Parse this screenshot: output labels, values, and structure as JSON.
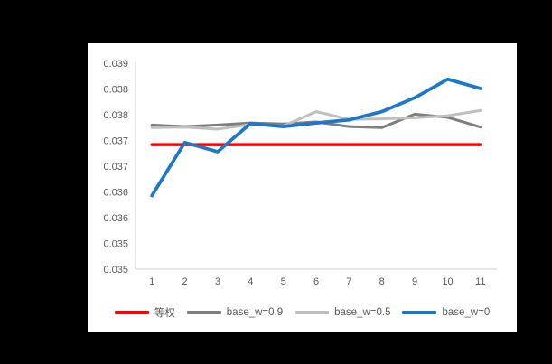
{
  "window": {
    "background_color": "#000000",
    "panel_color": "#ffffff"
  },
  "chart_data": {
    "type": "line",
    "title": "",
    "xlabel": "",
    "ylabel": "",
    "x": [
      1,
      2,
      3,
      4,
      5,
      6,
      7,
      8,
      9,
      10,
      11
    ],
    "xtick_labels": [
      "1",
      "2",
      "3",
      "4",
      "5",
      "6",
      "7",
      "8",
      "9",
      "10",
      "11"
    ],
    "ylim": [
      0.035,
      0.039
    ],
    "ytick_step": 0.0005,
    "ytick_labels": [
      "0.039",
      "0.038",
      "0.038",
      "0.037",
      "0.037",
      "0.036",
      "0.036",
      "0.035",
      "0.035"
    ],
    "grid": false,
    "legend_position": "bottom",
    "axis_color": "#d9d9d9",
    "tick_text_color": "#595959",
    "series": [
      {
        "name": "等权",
        "color": "#ff0000",
        "stroke_width": 3.5,
        "values": [
          0.03742,
          0.03742,
          0.03742,
          0.03742,
          0.03742,
          0.03742,
          0.03742,
          0.03742,
          0.03742,
          0.03742,
          0.03742
        ]
      },
      {
        "name": "base_w=0.9",
        "color": "#7f7f7f",
        "stroke_width": 3,
        "values": [
          0.0378,
          0.03777,
          0.0378,
          0.03784,
          0.03782,
          0.03786,
          0.03777,
          0.03775,
          0.03801,
          0.03795,
          0.03776
        ]
      },
      {
        "name": "base_w=0.5",
        "color": "#bfbfbf",
        "stroke_width": 3,
        "values": [
          0.03775,
          0.03776,
          0.03772,
          0.03781,
          0.03778,
          0.03806,
          0.03791,
          0.03792,
          0.03794,
          0.03798,
          0.03808
        ]
      },
      {
        "name": "base_w=0",
        "color": "#1e78c8",
        "stroke_width": 3.75,
        "values": [
          0.03643,
          0.03746,
          0.03728,
          0.03783,
          0.03777,
          0.03784,
          0.0379,
          0.03806,
          0.03833,
          0.03869,
          0.03851
        ]
      }
    ]
  }
}
